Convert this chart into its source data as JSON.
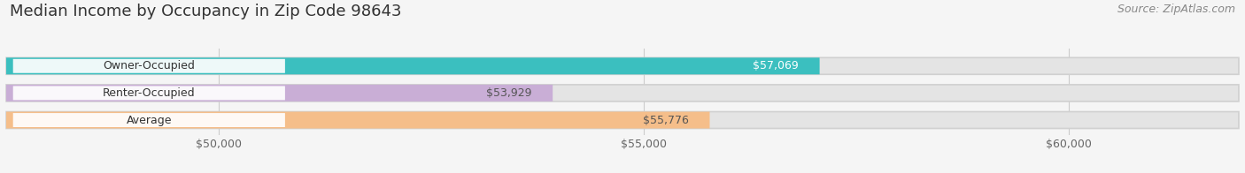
{
  "title": "Median Income by Occupancy in Zip Code 98643",
  "source": "Source: ZipAtlas.com",
  "categories": [
    "Owner-Occupied",
    "Renter-Occupied",
    "Average"
  ],
  "values": [
    57069,
    53929,
    55776
  ],
  "bar_colors": [
    "#3bbfbf",
    "#c9aed6",
    "#f5be8a"
  ],
  "bar_labels": [
    "$57,069",
    "$53,929",
    "$55,776"
  ],
  "label_text_colors": [
    "#ffffff",
    "#555555",
    "#555555"
  ],
  "xlim_min": 47500,
  "xlim_max": 62000,
  "xticks": [
    50000,
    55000,
    60000
  ],
  "xtick_labels": [
    "$50,000",
    "$55,000",
    "$60,000"
  ],
  "background_color": "#f5f5f5",
  "bar_bg_color": "#e4e4e4",
  "bar_label_bg": "#ffffff",
  "title_fontsize": 13,
  "source_fontsize": 9,
  "label_fontsize": 9,
  "cat_fontsize": 9,
  "tick_fontsize": 9
}
